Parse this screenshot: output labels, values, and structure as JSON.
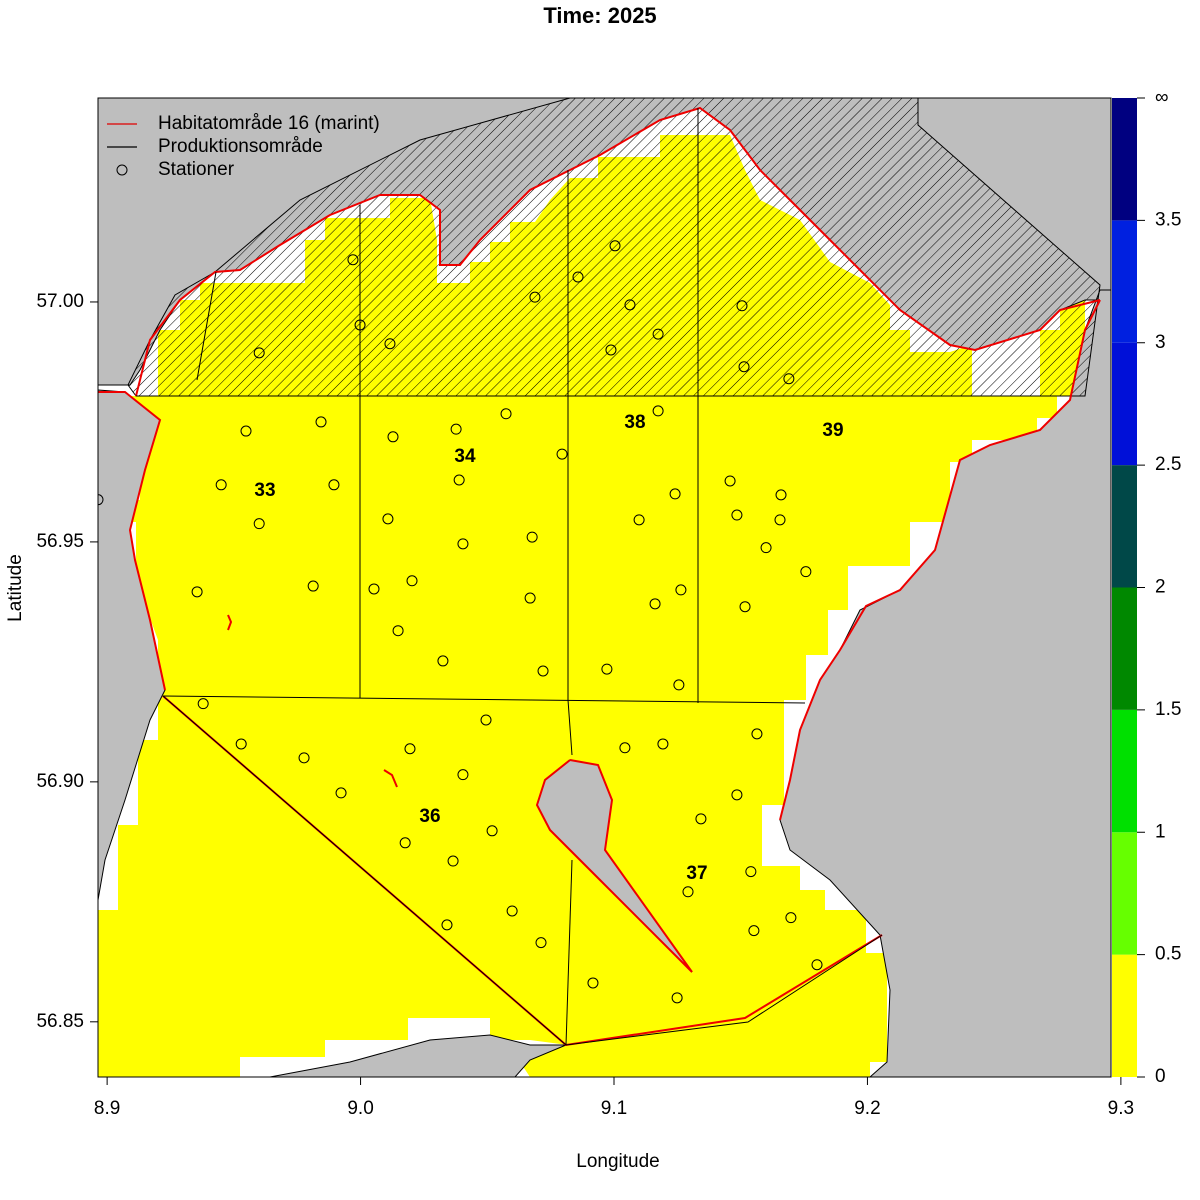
{
  "chart_data": {
    "type": "map",
    "title": "Time: 2025",
    "x_label": "Longitude",
    "y_label": "Latitude",
    "xlim": [
      8.8964,
      9.2961
    ],
    "ylim": [
      56.8385,
      57.0425
    ],
    "xticks": [
      8.9,
      {
        "value": 9.0,
        "label": "9.0"
      },
      9.1,
      9.2,
      9.3
    ],
    "yticks": [
      56.85,
      {
        "value": 56.9,
        "label": "56.90"
      },
      56.95,
      {
        "value": 57.0,
        "label": "57.00"
      }
    ],
    "legend": [
      {
        "label": "Habitatområde 16 (marint)",
        "color": "#e00000"
      },
      {
        "label": "Produktionsområde",
        "color": "#000000"
      },
      {
        "label": "Stationer",
        "color": "#000000"
      }
    ],
    "areas": [
      "33",
      "34",
      "38",
      "39",
      "36",
      "37"
    ],
    "stations": {
      "lon": [
        8.8964,
        8.997,
        9.1004,
        9.0858,
        9.0688,
        9.1063,
        9.1505,
        8.9998,
        9.1174,
        8.96,
        9.0116,
        9.0988,
        9.1513,
        9.169,
        9.0574,
        8.9844,
        8.9548,
        9.1174,
        9.0377,
        9.0128,
        9.0795,
        8.945,
        9.0389,
        8.9895,
        9.1241,
        9.1458,
        9.1659,
        9.0108,
        8.96,
        9.1099,
        9.1485,
        9.1655,
        9.0677,
        9.0404,
        9.16,
        9.1757,
        8.9355,
        8.9813,
        9.0053,
        9.0203,
        9.0669,
        9.1264,
        9.1162,
        9.1517,
        9.0148,
        9.0325,
        9.072,
        9.0972,
        9.1256,
        8.9379,
        9.0495,
        8.9529,
        8.9777,
        9.0195,
        9.1043,
        9.1193,
        9.1564,
        9.0404,
        8.9923,
        9.1485,
        9.1343,
        9.0519,
        9.0176,
        9.0365,
        9.1292,
        9.154,
        9.0341,
        9.0598,
        9.0712,
        9.1552,
        9.1698,
        9.1801,
        9.0917,
        9.1249
      ],
      "lat": [
        56.9588,
        57.0088,
        57.0117,
        57.0052,
        57.001,
        56.9994,
        56.9992,
        56.9952,
        56.9933,
        56.9894,
        56.9913,
        56.99,
        56.9865,
        56.984,
        56.9767,
        56.975,
        56.9731,
        56.9773,
        56.9735,
        56.9719,
        56.9683,
        56.9619,
        56.9629,
        56.9619,
        56.96,
        56.9627,
        56.9598,
        56.9548,
        56.9538,
        56.9546,
        56.9556,
        56.9546,
        56.951,
        56.9496,
        56.9488,
        56.9438,
        56.9396,
        56.9408,
        56.9402,
        56.9419,
        56.9383,
        56.94,
        56.9371,
        56.9365,
        56.9315,
        56.9252,
        56.9231,
        56.9235,
        56.9202,
        56.9163,
        56.9129,
        56.9079,
        56.905,
        56.9069,
        56.9071,
        56.9079,
        56.91,
        56.9015,
        56.8977,
        56.8973,
        56.8923,
        56.8898,
        56.8873,
        56.8835,
        56.8771,
        56.8813,
        56.8702,
        56.8731,
        56.8665,
        56.869,
        56.8717,
        56.8619,
        56.8581,
        56.855
      ]
    },
    "colorbar": {
      "breaks": [
        0,
        0.5,
        1,
        1.5,
        2,
        2.5,
        3,
        3.5
      ],
      "top_label": "∞",
      "colors": [
        "#ffff00",
        "#66ff00",
        "#00e000",
        "#008800",
        "#004848",
        "#0010d8",
        "#0020e0",
        "#000080"
      ]
    }
  }
}
